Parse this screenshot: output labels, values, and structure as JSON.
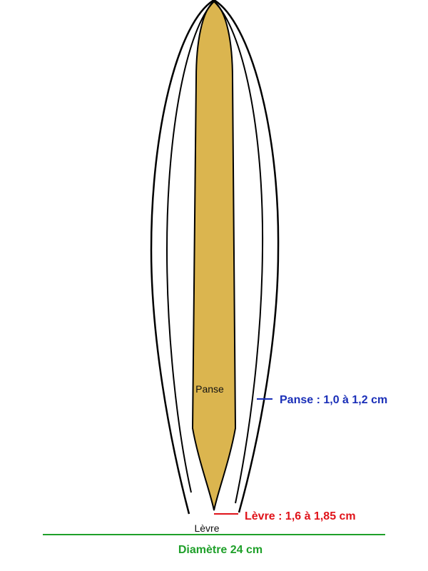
{
  "labels": {
    "panse_inner": "Panse",
    "levre_inner": "Lèvre",
    "panse_dim": "Panse : 1,0 à 1,2 cm",
    "levre_dim": "Lèvre : 1,6 à 1,85 cm",
    "diametre": "Diamètre 24 cm"
  },
  "colors": {
    "fill": "#dbb54f",
    "outline": "#000000",
    "panse_accent": "#1a2fb8",
    "levre_accent": "#e0131a",
    "diametre_accent": "#1fa02a"
  }
}
